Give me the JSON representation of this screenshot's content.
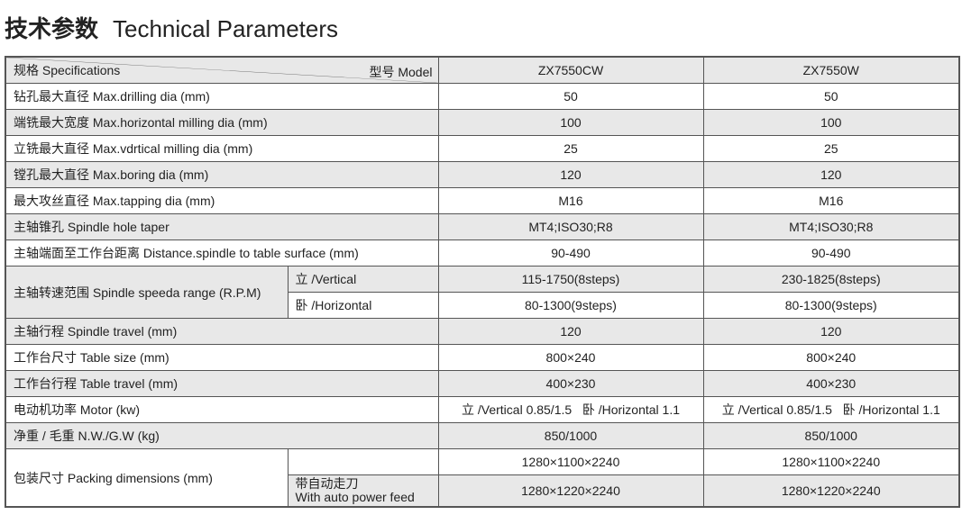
{
  "title": {
    "cn": "技术参数",
    "en": "Technical Parameters"
  },
  "header": {
    "spec": "规格  Specifications",
    "model": "型号 Model",
    "models": [
      "ZX7550CW",
      "ZX7550W"
    ]
  },
  "rows": [
    {
      "label": "钻孔最大直径  Max.drilling dia (mm)",
      "values": [
        "50",
        "50"
      ]
    },
    {
      "label": "端铣最大宽度  Max.horizontal milling dia (mm)",
      "values": [
        "100",
        "100"
      ]
    },
    {
      "label": "立铣最大直径  Max.vdrtical milling dia (mm)",
      "values": [
        "25",
        "25"
      ]
    },
    {
      "label": "镗孔最大直径  Max.boring dia (mm)",
      "values": [
        "120",
        "120"
      ]
    },
    {
      "label": "最大攻丝直径  Max.tapping dia (mm)",
      "values": [
        "M16",
        "M16"
      ]
    },
    {
      "label": "主轴锥孔  Spindle hole taper",
      "values": [
        "MT4;ISO30;R8",
        "MT4;ISO30;R8"
      ]
    },
    {
      "label": "主轴端面至工作台距离  Distance.spindle to table surface (mm)",
      "values": [
        "90-490",
        "90-490"
      ]
    }
  ],
  "speed": {
    "label": "主轴转速范围  Spindle speeda range (R.P.M)",
    "sub": [
      {
        "label": "立 /Vertical",
        "values": [
          "115-1750(8steps)",
          "230-1825(8steps)"
        ]
      },
      {
        "label": "卧 /Horizontal",
        "values": [
          "80-1300(9steps)",
          "80-1300(9steps)"
        ]
      }
    ]
  },
  "rows2": [
    {
      "label": "主轴行程  Spindle travel (mm)",
      "values": [
        "120",
        "120"
      ]
    },
    {
      "label": "工作台尺寸 Table size (mm)",
      "values": [
        "800×240",
        "800×240"
      ]
    },
    {
      "label": "工作台行程  Table travel (mm)",
      "values": [
        "400×230",
        "400×230"
      ]
    },
    {
      "label": "电动机功率  Motor (kw)",
      "values": [
        "立 /Vertical 0.85/1.5   卧 /Horizontal 1.1",
        "立 /Vertical 0.85/1.5   卧 /Horizontal 1.1"
      ]
    },
    {
      "label": "净重 / 毛重  N.W./G.W (kg)",
      "values": [
        "850/1000",
        "850/1000"
      ]
    }
  ],
  "packing": {
    "label": "包装尺寸  Packing dimensions (mm)",
    "sub_cn": "带自动走刀",
    "sub_en": "With auto power feed",
    "values": [
      "1280×1100×2240",
      "1280×1100×2240"
    ],
    "values_auto": [
      "1280×1220×2240",
      "1280×1220×2240"
    ]
  }
}
